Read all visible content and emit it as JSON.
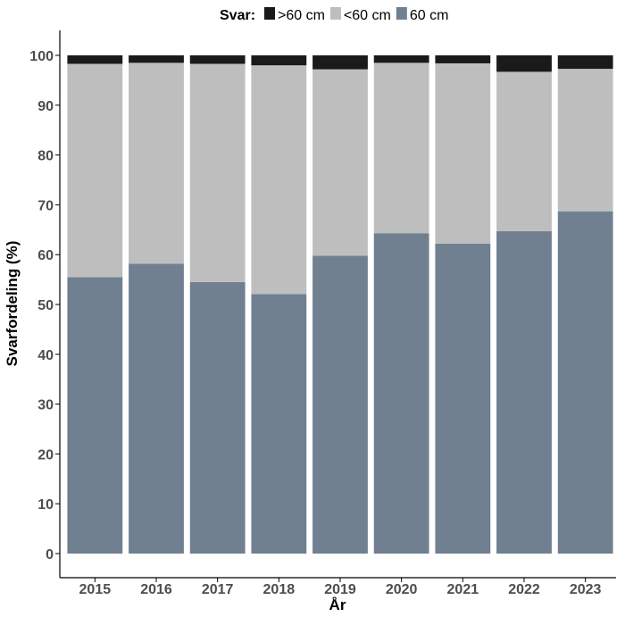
{
  "chart_data": {
    "type": "bar",
    "stacked": true,
    "xlabel": "År",
    "ylabel": "Svarfordeling (%)",
    "ylim": [
      0,
      100
    ],
    "yticks": [
      0,
      10,
      20,
      30,
      40,
      50,
      60,
      70,
      80,
      90,
      100
    ],
    "grid": false,
    "legend": {
      "title": "Svar:",
      "placement": "top",
      "entries": [
        ">60 cm",
        "<60 cm",
        "60 cm"
      ]
    },
    "categories": [
      "2015",
      "2016",
      "2017",
      "2018",
      "2019",
      "2020",
      "2021",
      "2022",
      "2023"
    ],
    "series": [
      {
        "name": "60 cm",
        "color": "#708090",
        "values": [
          55.5,
          58.2,
          54.5,
          52.1,
          59.8,
          64.3,
          62.2,
          64.7,
          68.7
        ]
      },
      {
        "name": "<60 cm",
        "color": "#bebebe",
        "values": [
          42.8,
          40.3,
          43.8,
          45.9,
          37.4,
          34.2,
          36.2,
          32.0,
          28.6
        ]
      },
      {
        "name": ">60 cm",
        "color": "#1a1a1a",
        "values": [
          1.7,
          1.5,
          1.7,
          2.0,
          2.8,
          1.5,
          1.6,
          3.3,
          2.7
        ]
      }
    ]
  }
}
